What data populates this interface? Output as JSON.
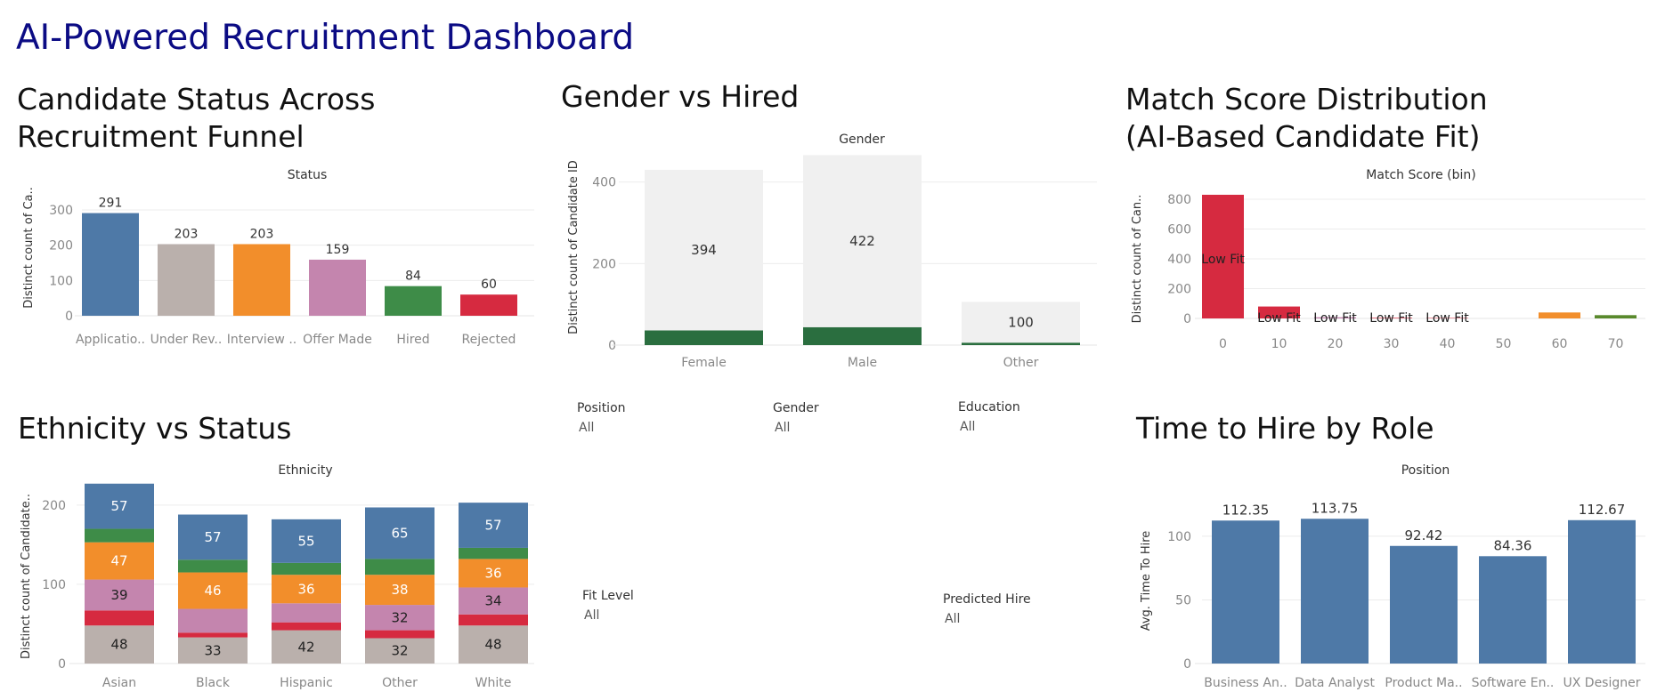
{
  "dashboard": {
    "title": "AI-Powered Recruitment Dashboard"
  },
  "panels": {
    "status": {
      "title_line1": "Candidate Status Across",
      "title_line2": "Recruitment Funnel"
    },
    "gender": {
      "title": "Gender vs Hired"
    },
    "match": {
      "title_line1": "Match Score Distribution",
      "title_line2": "(AI-Based Candidate Fit)"
    },
    "ethnicity": {
      "title": "Ethnicity vs Status"
    },
    "time": {
      "title": "Time to Hire by Role"
    }
  },
  "filters": {
    "position": {
      "label": "Position",
      "value": "All"
    },
    "gender": {
      "label": "Gender",
      "value": "All"
    },
    "education": {
      "label": "Education",
      "value": "All"
    },
    "fit_level": {
      "label": "Fit Level",
      "value": "All"
    },
    "predicted_hire": {
      "label": "Predicted Hire",
      "value": "All"
    }
  },
  "colors": {
    "blue": "#4e79a7",
    "grey": "#bab0ac",
    "orange": "#f28e2b",
    "pink": "#c485ae",
    "green": "#3e8c48",
    "red": "#d62a40",
    "dark_green": "#2a6e3f",
    "light_grey": "#f0f0f0",
    "olive": "#59892c",
    "title_blue": "#0b0b84"
  },
  "chart_data": [
    {
      "id": "status",
      "type": "bar",
      "header": "Status",
      "ylabel": "Distinct count of Ca..",
      "categories": [
        "Applicatio..",
        "Under Rev..",
        "Interview ..",
        "Offer Made",
        "Hired",
        "Rejected"
      ],
      "values": [
        291,
        203,
        203,
        159,
        84,
        60
      ],
      "bar_colors": [
        "#4e79a7",
        "#bab0ac",
        "#f28e2b",
        "#c485ae",
        "#3e8c48",
        "#d62a40"
      ],
      "yticks": [
        0,
        100,
        200,
        300
      ],
      "ylim": [
        0,
        300
      ]
    },
    {
      "id": "gender",
      "type": "bar",
      "header": "Gender",
      "ylabel": "Distinct count of Candidate ID",
      "categories": [
        "Female",
        "Male",
        "Other"
      ],
      "series": [
        {
          "name": "hired",
          "values": [
            36,
            44,
            6
          ],
          "color": "#2a6e3f"
        },
        {
          "name": "not hired",
          "values": [
            394,
            422,
            100
          ],
          "color": "#f0f0f0"
        }
      ],
      "yticks": [
        0,
        200,
        400
      ],
      "ylim": [
        0,
        480
      ]
    },
    {
      "id": "match",
      "type": "bar",
      "header": "Match Score (bin)",
      "ylabel": "Distinct count of Can..",
      "categories": [
        "0",
        "10",
        "20",
        "30",
        "40",
        "50",
        "60",
        "70"
      ],
      "values": [
        830,
        80,
        8,
        4,
        3,
        0,
        40,
        22
      ],
      "bar_colors": [
        "#d62a40",
        "#d62a40",
        "#c485ae",
        "#d62a40",
        "#d62a40",
        "#d62a40",
        "#f28e2b",
        "#59892c"
      ],
      "labels": [
        "Low Fit",
        "Low Fit",
        "Low Fit",
        "Low Fit",
        "Low Fit",
        "",
        "",
        ""
      ],
      "yticks": [
        0,
        200,
        400,
        600,
        800
      ],
      "ylim": [
        0,
        800
      ]
    },
    {
      "id": "ethnicity",
      "type": "bar",
      "header": "Ethnicity",
      "ylabel": "Distinct count of Candidate..",
      "categories": [
        "Asian",
        "Black",
        "Hispanic",
        "Other",
        "White"
      ],
      "series": [
        {
          "name": "grey",
          "color": "#bab0ac",
          "values": [
            48,
            33,
            42,
            32,
            48
          ],
          "labels": [
            "48",
            "33",
            "42",
            "32",
            "48"
          ]
        },
        {
          "name": "red",
          "color": "#d62a40",
          "values": [
            19,
            6,
            10,
            10,
            14
          ],
          "labels": [
            "",
            "",
            "",
            "",
            ""
          ]
        },
        {
          "name": "pink",
          "color": "#c485ae",
          "values": [
            39,
            30,
            24,
            32,
            34
          ],
          "labels": [
            "39",
            "",
            "",
            "32",
            "34"
          ]
        },
        {
          "name": "orange",
          "color": "#f28e2b",
          "values": [
            47,
            46,
            36,
            38,
            36
          ],
          "labels": [
            "47",
            "46",
            "36",
            "38",
            "36"
          ]
        },
        {
          "name": "green",
          "color": "#3e8c48",
          "values": [
            17,
            16,
            15,
            20,
            14
          ],
          "labels": [
            "",
            "",
            "",
            "",
            ""
          ]
        },
        {
          "name": "blue",
          "color": "#4e79a7",
          "values": [
            57,
            57,
            55,
            65,
            57
          ],
          "labels": [
            "57",
            "57",
            "55",
            "65",
            "57"
          ]
        }
      ],
      "yticks": [
        0,
        100,
        200
      ],
      "ylim": [
        0,
        220
      ]
    },
    {
      "id": "time",
      "type": "bar",
      "header": "Position",
      "ylabel": "Avg. Time To Hire",
      "categories": [
        "Business An..",
        "Data Analyst",
        "Product Ma..",
        "Software En..",
        "UX Designer"
      ],
      "values": [
        112.35,
        113.75,
        92.42,
        84.36,
        112.67
      ],
      "labels": [
        "112.35",
        "113.75",
        "92.42",
        "84.36",
        "112.67"
      ],
      "color": "#4e79a7",
      "yticks": [
        0,
        50,
        100
      ],
      "ylim": [
        0,
        130
      ]
    }
  ]
}
